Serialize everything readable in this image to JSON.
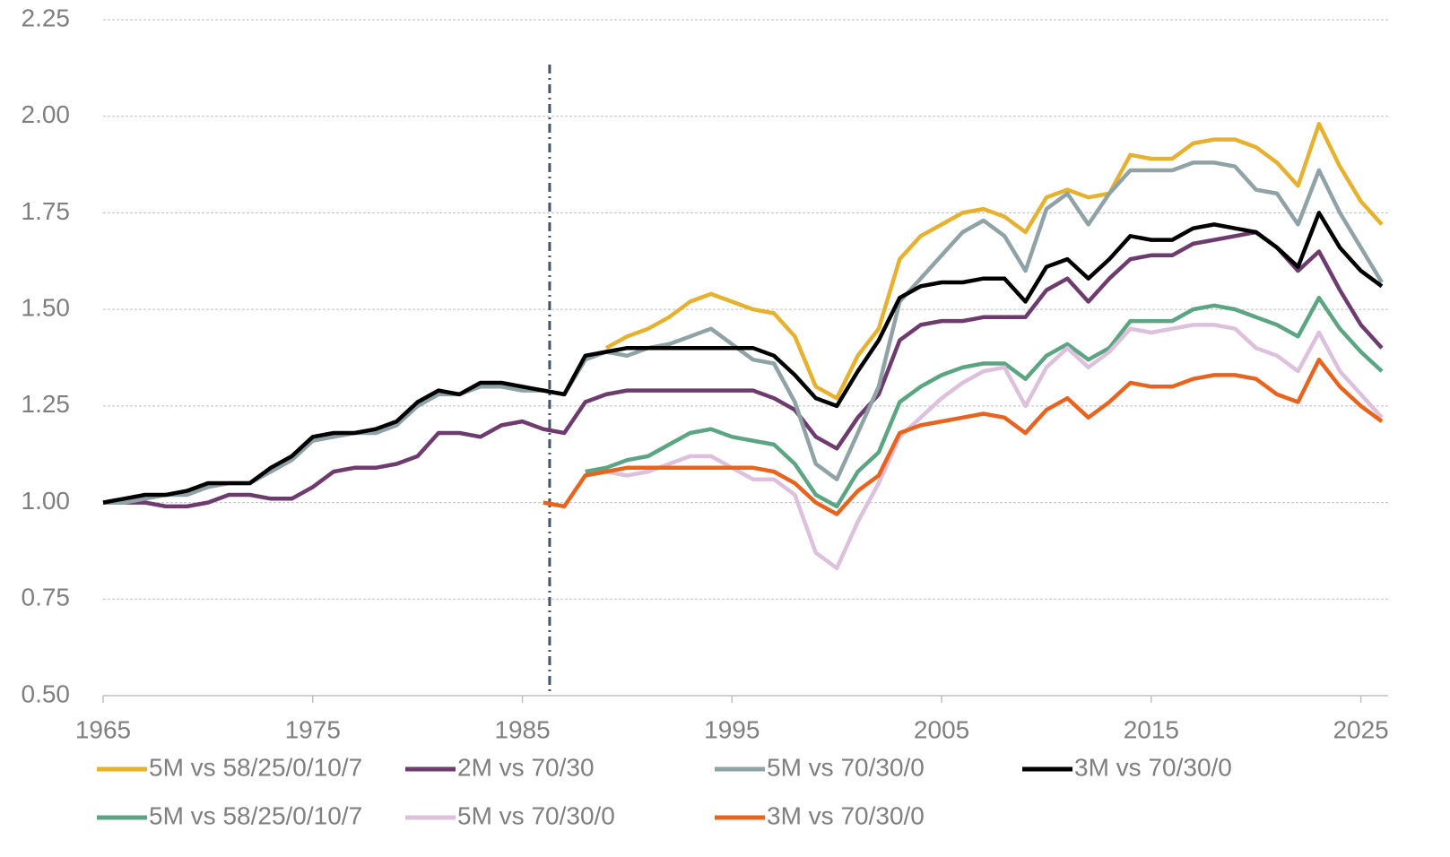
{
  "chart_data": {
    "type": "line",
    "x": [
      1965,
      1966,
      1967,
      1968,
      1969,
      1970,
      1971,
      1972,
      1973,
      1974,
      1975,
      1976,
      1977,
      1978,
      1979,
      1980,
      1981,
      1982,
      1983,
      1984,
      1985,
      1986,
      1987,
      1988,
      1989,
      1990,
      1991,
      1992,
      1993,
      1994,
      1995,
      1996,
      1997,
      1998,
      1999,
      2000,
      2001,
      2002,
      2003,
      2004,
      2005,
      2006,
      2007,
      2008,
      2009,
      2010,
      2011,
      2012,
      2013,
      2014,
      2015,
      2016,
      2017,
      2018,
      2019,
      2020,
      2021,
      2022,
      2023,
      2024,
      2025,
      2026
    ],
    "series": [
      {
        "name": "5M vs 58/25/0/10/7",
        "color": "#e6b12e",
        "values": [
          null,
          null,
          null,
          null,
          null,
          null,
          null,
          null,
          null,
          null,
          null,
          null,
          null,
          null,
          null,
          null,
          null,
          null,
          null,
          null,
          null,
          null,
          null,
          null,
          1.4,
          1.43,
          1.45,
          1.48,
          1.52,
          1.54,
          1.52,
          1.5,
          1.49,
          1.43,
          1.3,
          1.27,
          1.38,
          1.45,
          1.63,
          1.69,
          1.72,
          1.75,
          1.76,
          1.74,
          1.7,
          1.79,
          1.81,
          1.79,
          1.8,
          1.9,
          1.89,
          1.89,
          1.93,
          1.94,
          1.94,
          1.92,
          1.88,
          1.82,
          1.98,
          1.87,
          1.78,
          1.72
        ]
      },
      {
        "name": "2M vs 70/30",
        "color": "#6e3b6e",
        "values": [
          1.0,
          1.0,
          1.0,
          0.99,
          0.99,
          1.0,
          1.02,
          1.02,
          1.01,
          1.01,
          1.04,
          1.08,
          1.09,
          1.09,
          1.1,
          1.12,
          1.18,
          1.18,
          1.17,
          1.2,
          1.21,
          1.19,
          1.18,
          1.26,
          1.28,
          1.29,
          1.29,
          1.29,
          1.29,
          1.29,
          1.29,
          1.29,
          1.27,
          1.24,
          1.17,
          1.14,
          1.22,
          1.28,
          1.42,
          1.46,
          1.47,
          1.47,
          1.48,
          1.48,
          1.48,
          1.55,
          1.58,
          1.52,
          1.58,
          1.63,
          1.64,
          1.64,
          1.67,
          1.68,
          1.69,
          1.7,
          1.66,
          1.6,
          1.65,
          1.55,
          1.46,
          1.4
        ]
      },
      {
        "name": "5M vs 70/30/0",
        "color": "#8fa2a6",
        "values": [
          1.0,
          1.0,
          1.01,
          1.02,
          1.02,
          1.04,
          1.05,
          1.05,
          1.08,
          1.11,
          1.16,
          1.17,
          1.18,
          1.18,
          1.2,
          1.25,
          1.28,
          1.28,
          1.3,
          1.3,
          1.29,
          1.29,
          1.28,
          1.37,
          1.39,
          1.38,
          1.4,
          1.41,
          1.43,
          1.45,
          1.41,
          1.37,
          1.36,
          1.26,
          1.1,
          1.06,
          1.18,
          1.3,
          1.52,
          1.58,
          1.64,
          1.7,
          1.73,
          1.69,
          1.6,
          1.76,
          1.8,
          1.72,
          1.8,
          1.86,
          1.86,
          1.86,
          1.88,
          1.88,
          1.87,
          1.81,
          1.8,
          1.72,
          1.86,
          1.75,
          1.66,
          1.57
        ]
      },
      {
        "name": "3M vs 70/30/0",
        "color": "#000000",
        "values": [
          1.0,
          1.01,
          1.02,
          1.02,
          1.03,
          1.05,
          1.05,
          1.05,
          1.09,
          1.12,
          1.17,
          1.18,
          1.18,
          1.19,
          1.21,
          1.26,
          1.29,
          1.28,
          1.31,
          1.31,
          1.3,
          1.29,
          1.28,
          1.38,
          1.39,
          1.4,
          1.4,
          1.4,
          1.4,
          1.4,
          1.4,
          1.4,
          1.38,
          1.33,
          1.27,
          1.25,
          1.34,
          1.42,
          1.53,
          1.56,
          1.57,
          1.57,
          1.58,
          1.58,
          1.52,
          1.61,
          1.63,
          1.58,
          1.63,
          1.69,
          1.68,
          1.68,
          1.71,
          1.72,
          1.71,
          1.7,
          1.66,
          1.61,
          1.75,
          1.66,
          1.6,
          1.56
        ]
      },
      {
        "name": "5M vs 58/25/0/10/7",
        "color": "#5ba582",
        "values": [
          null,
          null,
          null,
          null,
          null,
          null,
          null,
          null,
          null,
          null,
          null,
          null,
          null,
          null,
          null,
          null,
          null,
          null,
          null,
          null,
          null,
          null,
          null,
          1.08,
          1.09,
          1.11,
          1.12,
          1.15,
          1.18,
          1.19,
          1.17,
          1.16,
          1.15,
          1.1,
          1.02,
          0.99,
          1.08,
          1.13,
          1.26,
          1.3,
          1.33,
          1.35,
          1.36,
          1.36,
          1.32,
          1.38,
          1.41,
          1.37,
          1.4,
          1.47,
          1.47,
          1.47,
          1.5,
          1.51,
          1.5,
          1.48,
          1.46,
          1.43,
          1.53,
          1.45,
          1.39,
          1.34
        ]
      },
      {
        "name": "5M vs 70/30/0",
        "color": "#dcc0dc",
        "values": [
          null,
          null,
          null,
          null,
          null,
          null,
          null,
          null,
          null,
          null,
          null,
          null,
          null,
          null,
          null,
          null,
          null,
          null,
          null,
          null,
          null,
          null,
          null,
          1.07,
          1.08,
          1.07,
          1.08,
          1.1,
          1.12,
          1.12,
          1.09,
          1.06,
          1.06,
          1.02,
          0.87,
          0.83,
          0.95,
          1.05,
          1.17,
          1.22,
          1.27,
          1.31,
          1.34,
          1.35,
          1.25,
          1.35,
          1.4,
          1.35,
          1.39,
          1.45,
          1.44,
          1.45,
          1.46,
          1.46,
          1.45,
          1.4,
          1.38,
          1.34,
          1.44,
          1.34,
          1.28,
          1.22
        ]
      },
      {
        "name": "3M vs 70/30/0",
        "color": "#e8641e",
        "values": [
          null,
          null,
          null,
          null,
          null,
          null,
          null,
          null,
          null,
          null,
          null,
          null,
          null,
          null,
          null,
          null,
          null,
          null,
          null,
          null,
          null,
          1.0,
          0.99,
          1.07,
          1.08,
          1.09,
          1.09,
          1.09,
          1.09,
          1.09,
          1.09,
          1.09,
          1.08,
          1.05,
          1.0,
          0.97,
          1.03,
          1.07,
          1.18,
          1.2,
          1.21,
          1.22,
          1.23,
          1.22,
          1.18,
          1.24,
          1.27,
          1.22,
          1.26,
          1.31,
          1.3,
          1.3,
          1.32,
          1.33,
          1.33,
          1.32,
          1.28,
          1.26,
          1.37,
          1.3,
          1.25,
          1.21
        ]
      }
    ],
    "xlim": [
      1965,
      2026.3
    ],
    "xticks": [
      1965,
      1975,
      1985,
      1995,
      2005,
      2015,
      2025
    ],
    "ylim": [
      0.5,
      2.25
    ],
    "yticks": [
      {
        "value": 0.5,
        "label": "0.50"
      },
      {
        "value": 0.75,
        "label": "0.75"
      },
      {
        "value": 1.0,
        "label": "1.00"
      },
      {
        "value": 1.25,
        "label": "1.25"
      },
      {
        "value": 1.5,
        "label": "1.50"
      },
      {
        "value": 1.75,
        "label": "1.75"
      },
      {
        "value": 2.0,
        "label": "2.00"
      },
      {
        "value": 2.25,
        "label": "2.25"
      }
    ],
    "grid": true,
    "vertical_line_x": 1986.3,
    "legend": "bottom"
  }
}
